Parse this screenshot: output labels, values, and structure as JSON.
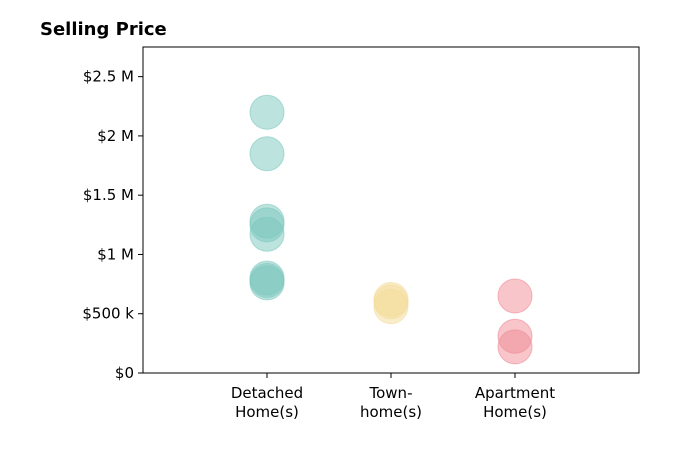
{
  "chart_data": {
    "type": "scatter",
    "title": "Selling Price",
    "xlabel": "",
    "ylabel": "",
    "categories": [
      [
        "Detached",
        "Home(s)"
      ],
      [
        "Town-",
        "home(s)"
      ],
      [
        "Apartment",
        "Home(s)"
      ]
    ],
    "y_ticks": [
      {
        "value": 0,
        "label": "$0"
      },
      {
        "value": 500000,
        "label": "$500 k"
      },
      {
        "value": 1000000,
        "label": "$1 M"
      },
      {
        "value": 1500000,
        "label": "$1.5 M"
      },
      {
        "value": 2000000,
        "label": "$2 M"
      },
      {
        "value": 2500000,
        "label": "$2.5 M"
      }
    ],
    "ylim": [
      0,
      2750000
    ],
    "grid": false,
    "series": [
      {
        "category": "Detached Home(s)",
        "color": "#7cc8bd",
        "values": [
          2200000,
          1850000,
          1280000,
          1250000,
          1170000,
          800000,
          780000,
          760000
        ]
      },
      {
        "category": "Town-home(s)",
        "color": "#f3dc9a",
        "values": [
          620000,
          600000,
          560000
        ]
      },
      {
        "category": "Apartment Home(s)",
        "color": "#f08c96",
        "values": [
          650000,
          310000,
          220000
        ]
      }
    ]
  }
}
